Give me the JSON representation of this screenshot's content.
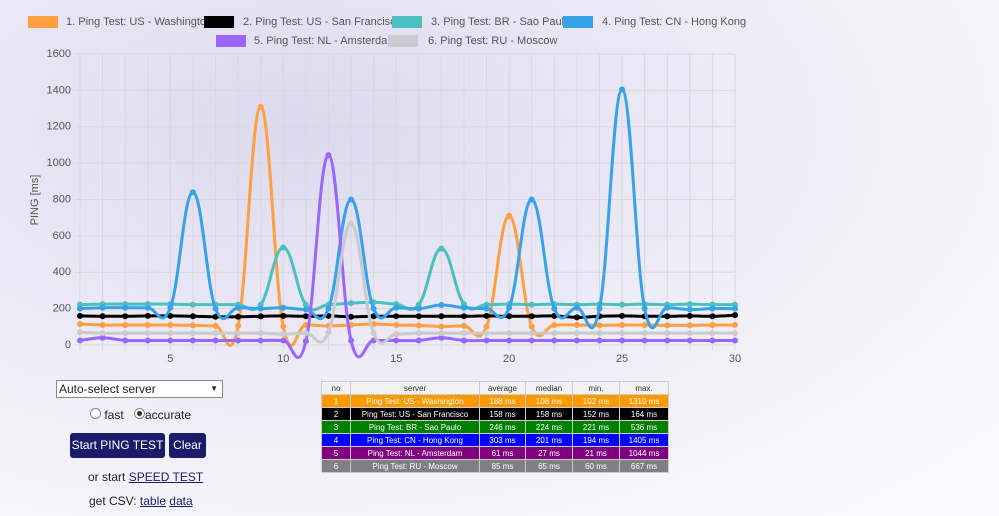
{
  "chart_data": {
    "type": "line",
    "y_label": "PING [ms]",
    "x": [
      1,
      2,
      3,
      4,
      5,
      6,
      7,
      8,
      9,
      10,
      11,
      12,
      13,
      14,
      15,
      16,
      17,
      18,
      19,
      20,
      21,
      22,
      23,
      24,
      25,
      26,
      27,
      28,
      29,
      30
    ],
    "xlim": [
      1,
      30
    ],
    "xticks": [
      5,
      10,
      15,
      20,
      25,
      30
    ],
    "ylim": [
      0,
      1600
    ],
    "yticks": [
      0,
      200,
      400,
      600,
      800,
      1000,
      1200,
      1400,
      1600
    ],
    "grid": true,
    "series": [
      {
        "name": "1. Ping Test: US - Washington",
        "color": "#ff9f40",
        "values": [
          115,
          110,
          110,
          110,
          110,
          108,
          105,
          105,
          1310,
          102,
          110,
          105,
          110,
          115,
          110,
          108,
          102,
          105,
          102,
          710,
          102,
          110,
          110,
          108,
          110,
          110,
          108,
          108,
          110,
          110
        ]
      },
      {
        "name": "2. Ping Test: US - San Francisco",
        "color": "#000000",
        "values": [
          160,
          158,
          158,
          160,
          160,
          158,
          155,
          155,
          158,
          160,
          158,
          160,
          155,
          158,
          158,
          158,
          158,
          158,
          160,
          158,
          158,
          160,
          152,
          158,
          160,
          158,
          158,
          160,
          158,
          164
        ]
      },
      {
        "name": "3. Ping Test: BR - Sao Paulo",
        "color": "#4bc0c0",
        "values": [
          222,
          225,
          225,
          225,
          225,
          222,
          222,
          222,
          222,
          536,
          222,
          222,
          230,
          235,
          225,
          222,
          530,
          225,
          222,
          225,
          222,
          225,
          222,
          225,
          222,
          225,
          222,
          225,
          222,
          222
        ]
      },
      {
        "name": "4. Ping Test: CN - Hong Kong",
        "color": "#36a2eb",
        "values": [
          200,
          205,
          205,
          205,
          205,
          840,
          200,
          205,
          200,
          205,
          195,
          200,
          800,
          200,
          205,
          200,
          220,
          205,
          200,
          205,
          800,
          200,
          205,
          200,
          1405,
          200,
          205,
          195,
          200,
          200
        ]
      },
      {
        "name": "5. Ping Test: NL - Amsterdam",
        "color": "#9966ff",
        "values": [
          25,
          40,
          25,
          25,
          25,
          25,
          25,
          25,
          25,
          25,
          21,
          1044,
          25,
          25,
          25,
          25,
          40,
          25,
          25,
          25,
          25,
          25,
          25,
          25,
          25,
          25,
          25,
          25,
          25,
          25
        ]
      },
      {
        "name": "6. Ping Test: RU - Moscow",
        "color": "#c9cbcf",
        "values": [
          70,
          65,
          65,
          65,
          65,
          65,
          65,
          65,
          65,
          60,
          65,
          70,
          667,
          65,
          60,
          65,
          65,
          65,
          65,
          65,
          65,
          65,
          65,
          65,
          65,
          65,
          65,
          65,
          65,
          65
        ]
      }
    ]
  },
  "controls": {
    "server_select": "Auto-select server",
    "modes": [
      "fast",
      "accurate"
    ],
    "start_button": "Start PING TEST",
    "clear_button": "Clear",
    "speed_prefix": "or start",
    "speed_link": "SPEED TEST",
    "csv_prefix": "get CSV:",
    "csv_links": [
      "table",
      "data"
    ]
  },
  "table": {
    "header": [
      "no",
      "server",
      "average",
      "median",
      "min.",
      "max."
    ],
    "rows": [
      {
        "color": "#ff9900",
        "cells": [
          "1",
          "Ping Test: US - Washington",
          "188 ms",
          "108 ms",
          "102 ms",
          "1310 ms"
        ]
      },
      {
        "color": "#000000",
        "cells": [
          "2",
          "Ping Test: US - San Francisco",
          "158 ms",
          "158 ms",
          "152 ms",
          "164 ms"
        ]
      },
      {
        "color": "#008000",
        "cells": [
          "3",
          "Ping Test: BR - Sao Paulo",
          "246 ms",
          "224 ms",
          "221 ms",
          "536 ms"
        ]
      },
      {
        "color": "#0000ff",
        "cells": [
          "4",
          "Ping Test: CN - Hong Kong",
          "303 ms",
          "201 ms",
          "194 ms",
          "1405 ms"
        ]
      },
      {
        "color": "#800080",
        "cells": [
          "5",
          "Ping Test: NL - Amsterdam",
          "61 ms",
          "27 ms",
          "21 ms",
          "1044 ms"
        ]
      },
      {
        "color": "#808080",
        "cells": [
          "6",
          "Ping Test: RU - Moscow",
          "85 ms",
          "65 ms",
          "60 ms",
          "667 ms"
        ]
      }
    ]
  }
}
